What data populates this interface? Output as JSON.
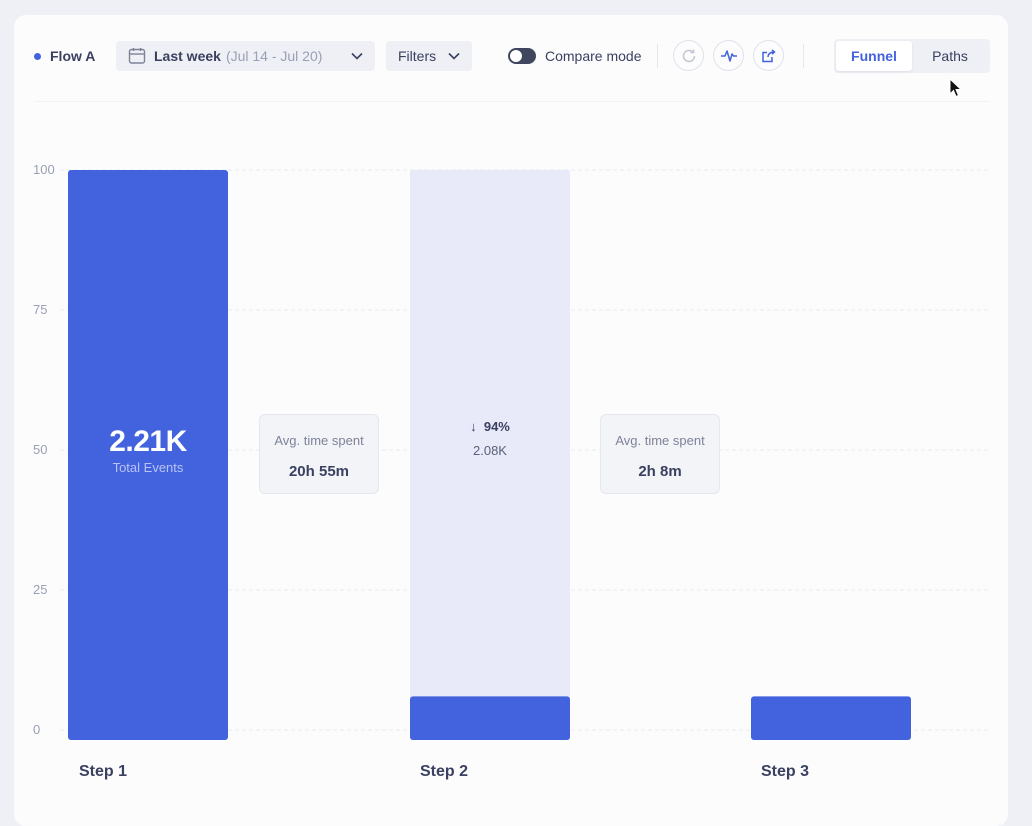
{
  "toolbar": {
    "flow_name": "Flow A",
    "date_label": "Last week",
    "date_range": "(Jul 14 - Jul 20)",
    "filters_label": "Filters",
    "compare_label": "Compare mode",
    "compare_on": false,
    "view_options": [
      "Funnel",
      "Paths"
    ],
    "active_view": "Funnel"
  },
  "colors": {
    "accent": "#4262de",
    "bar_dropoff": "#e8eafa",
    "text": "#3a4060",
    "muted": "#9aa0b5"
  },
  "icons": [
    "calendar-icon",
    "chevron-down-icon",
    "refresh-icon",
    "pulse-icon",
    "export-icon",
    "cursor-icon"
  ],
  "chart_data": {
    "type": "bar",
    "categories": [
      "Step 1",
      "Step 2",
      "Step 3"
    ],
    "series": [
      {
        "values": [
          100,
          6,
          6
        ]
      }
    ],
    "dropoff_ceiling": [
      null,
      100,
      null
    ],
    "ylim": [
      0,
      100
    ],
    "yticks": [
      "0",
      "25",
      "50",
      "75",
      "100"
    ],
    "grid": true,
    "step1_total": "2.21K",
    "step1_total_label": "Total Events",
    "step2_drop_pct": "94%",
    "step2_drop_value": "2.08K",
    "avg_time": [
      {
        "label": "Avg. time spent",
        "value": "20h 55m"
      },
      {
        "label": "Avg. time spent",
        "value": "2h 8m"
      }
    ]
  }
}
